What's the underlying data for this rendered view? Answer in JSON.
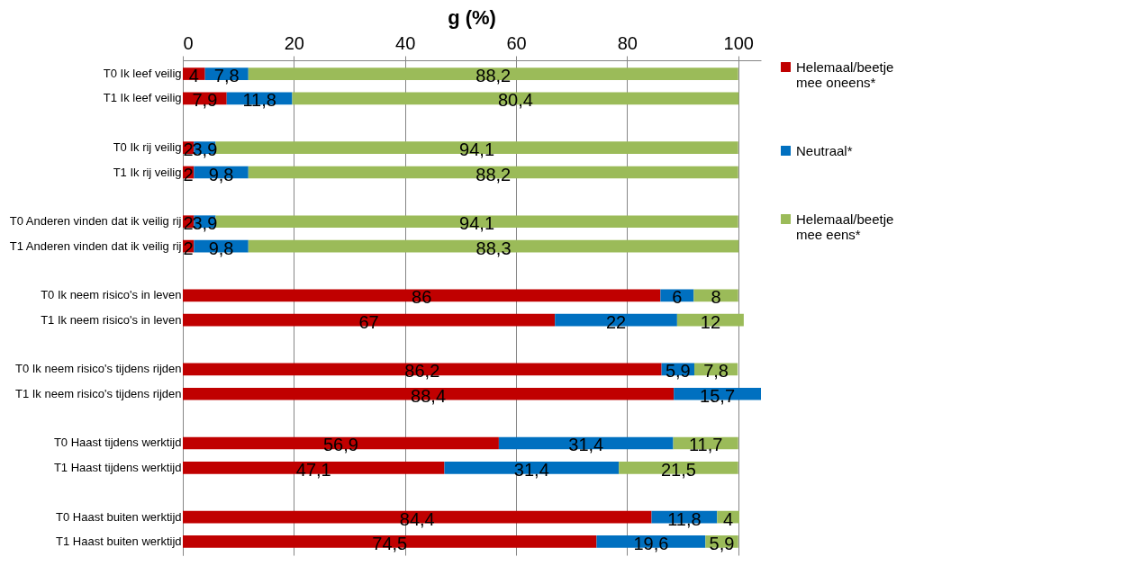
{
  "chart_data": {
    "type": "bar",
    "orientation": "horizontal",
    "stacked": true,
    "title": "g (%)",
    "categories": [
      "T0 Ik leef veilig",
      "T1 Ik leef veilig",
      null,
      "T0 Ik rij veilig",
      "T1 Ik rij veilig",
      null,
      "T0 Anderen vinden dat ik veilig rij",
      "T1 Anderen vinden dat ik veilig rij",
      null,
      "T0 Ik neem risico's in leven ",
      "T1 Ik neem risico's in leven",
      null,
      "T0 Ik neem risico's tijdens rijden",
      "T1 Ik neem risico's tijdens rijden",
      null,
      "T0 Haast tijdens werktijd",
      "T1 Haast tijdens werktijd",
      null,
      "T0 Haast buiten werktijd",
      "T1 Haast buiten werktijd"
    ],
    "series": [
      {
        "name": "Helemaal/beetje mee oneens*",
        "color": "#c00000",
        "values": [
          4,
          7.9,
          null,
          2,
          2,
          null,
          2,
          2,
          null,
          86,
          67,
          null,
          86.2,
          88.4,
          null,
          56.9,
          47.1,
          null,
          84.4,
          74.5
        ],
        "value_labels": [
          "4",
          "7,9",
          null,
          "2",
          "2",
          null,
          "2",
          "2",
          null,
          "86",
          "67",
          null,
          "86,2",
          "88,4",
          null,
          "56,9",
          "47,1",
          null,
          "84,4",
          "74,5"
        ]
      },
      {
        "name": "Neutraal*",
        "color": "#0070c0",
        "values": [
          7.8,
          11.8,
          null,
          3.9,
          9.8,
          null,
          3.9,
          9.8,
          null,
          6,
          22,
          null,
          5.9,
          15.7,
          null,
          31.4,
          31.4,
          null,
          11.8,
          19.6
        ],
        "value_labels": [
          "7,8",
          "11,8",
          null,
          "3,9",
          "9,8",
          null,
          "3,9",
          "9,8",
          null,
          "6",
          "22",
          null,
          "5,9",
          "15,7",
          null,
          "31,4",
          "31,4",
          null,
          "11,8",
          "19,6"
        ]
      },
      {
        "name": "Helemaal/beetje mee eens*",
        "color": "#9bbb59",
        "values": [
          88.2,
          80.4,
          null,
          94.1,
          88.2,
          null,
          94.1,
          88.3,
          null,
          8,
          12,
          null,
          7.8,
          null,
          null,
          11.7,
          21.5,
          null,
          4,
          5.9
        ],
        "value_labels": [
          "88,2",
          "80,4",
          null,
          "94,1",
          "88,2",
          null,
          "94,1",
          "88,3",
          null,
          "8",
          "12",
          null,
          "7,8",
          null,
          null,
          "11,7",
          "21,5",
          null,
          "4",
          "5,9"
        ]
      }
    ],
    "xlim": [
      0,
      104.1
    ],
    "xticks": [
      0,
      20,
      40,
      60,
      80,
      100
    ],
    "grid": "x",
    "legend": "right"
  }
}
